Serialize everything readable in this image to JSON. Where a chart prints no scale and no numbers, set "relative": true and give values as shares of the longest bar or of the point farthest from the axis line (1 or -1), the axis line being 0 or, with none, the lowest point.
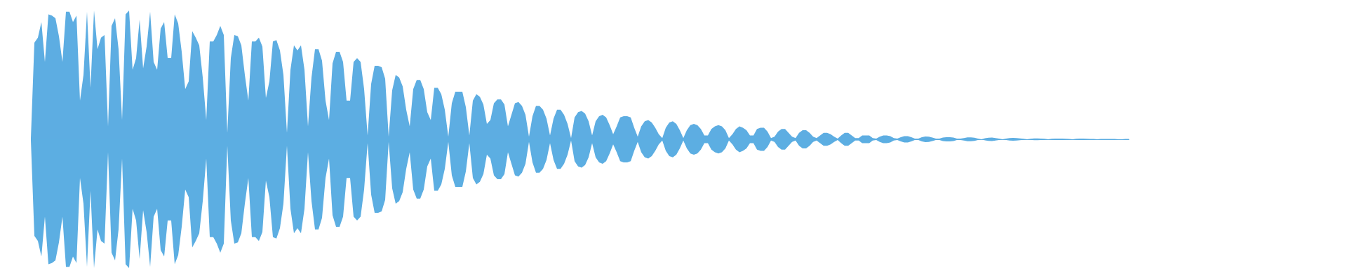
{
  "chart_data": {
    "type": "area",
    "relative": true,
    "categories": [
      null,
      null,
      null,
      null,
      null,
      null,
      null,
      null,
      null,
      null,
      null,
      null,
      null,
      null,
      null,
      null,
      null,
      null,
      null,
      null,
      null,
      null,
      null,
      null,
      null,
      null,
      null,
      null,
      null,
      null,
      null,
      null,
      null,
      null,
      null,
      null,
      null,
      null,
      null,
      null,
      null,
      null,
      null,
      null,
      null,
      null,
      null,
      null,
      null,
      null,
      null,
      null,
      null,
      null,
      null,
      null,
      null,
      null,
      null,
      null,
      null,
      null,
      null,
      null,
      null,
      null,
      null,
      null,
      null,
      null,
      null,
      null,
      null,
      null,
      null,
      null,
      null,
      null,
      null,
      null,
      null,
      null,
      null,
      null,
      null,
      null,
      null,
      null,
      null,
      null,
      null,
      null,
      null,
      null,
      null,
      null,
      null,
      null,
      null,
      null,
      null,
      null,
      null,
      null,
      null,
      null,
      null,
      null,
      null,
      null,
      null,
      null,
      null,
      null,
      null,
      null,
      null,
      null,
      null,
      null,
      null,
      null,
      null,
      null,
      null,
      null,
      null,
      null,
      null,
      null,
      null,
      null,
      null,
      null,
      null,
      null,
      null,
      null,
      null,
      null,
      null,
      null,
      null,
      null,
      null,
      null,
      null,
      null,
      null,
      null,
      null,
      null,
      null,
      null,
      null,
      null,
      null,
      null,
      null,
      null,
      null,
      null,
      null,
      null,
      null,
      null,
      null,
      null,
      null,
      null,
      null,
      null,
      null,
      null,
      null,
      null,
      null,
      null,
      null,
      null,
      null,
      null,
      null,
      null,
      null,
      null,
      null,
      null,
      null,
      null,
      null,
      null,
      null,
      null,
      null,
      null,
      null,
      null,
      null,
      null,
      null,
      null,
      null,
      null,
      null,
      null,
      null,
      null,
      null,
      null,
      null,
      null,
      null,
      null,
      null,
      null,
      null,
      null,
      null,
      null,
      null,
      null,
      null,
      null,
      null,
      null,
      null,
      null,
      null,
      null,
      null,
      null,
      null,
      null,
      null,
      null,
      null,
      null,
      null,
      null,
      null,
      null,
      null,
      null,
      null,
      null,
      null,
      null,
      null,
      null,
      null,
      null,
      null,
      null,
      null,
      null,
      null,
      null,
      null,
      null,
      null,
      null,
      null,
      null,
      null,
      null,
      null,
      null,
      null,
      null,
      null,
      null,
      null,
      null,
      null,
      null,
      null,
      null,
      null,
      null,
      null,
      null,
      null,
      null,
      null,
      null,
      null,
      null,
      null,
      null,
      null,
      null,
      null,
      null,
      null,
      null,
      null,
      null,
      null,
      null,
      null,
      null,
      null,
      null,
      null,
      null,
      null,
      null,
      null,
      null,
      null,
      null,
      null,
      null
    ],
    "series": [
      {
        "color": "#5dade2",
        "values": [
          0.01,
          0.75,
          0.79,
          0.91,
          0.6,
          0.97,
          0.96,
          0.94,
          0.8,
          0.6,
          0.99,
          0.99,
          0.91,
          0.96,
          0.3,
          0.5,
          0.99,
          0.4,
          1,
          0.7,
          0.79,
          0.81,
          0.1,
          0.88,
          0.94,
          0.7,
          0.15,
          0.97,
          1,
          0.54,
          0.63,
          0.93,
          0.55,
          0.72,
          0.99,
          0.6,
          0.54,
          0.86,
          0.91,
          0.63,
          0.63,
          0.97,
          0.9,
          0.68,
          0.39,
          0.45,
          0.84,
          0.79,
          0.73,
          0.48,
          0.15,
          0.76,
          0.76,
          0.81,
          0.88,
          0.81,
          0.05,
          0.63,
          0.81,
          0.8,
          0.73,
          0.5,
          0.3,
          0.76,
          0.76,
          0.79,
          0.72,
          0.32,
          0.45,
          0.76,
          0.77,
          0.69,
          0.5,
          0.05,
          0.54,
          0.73,
          0.69,
          0.73,
          0.54,
          0.1,
          0.48,
          0.7,
          0.7,
          0.61,
          0.3,
          0.15,
          0.59,
          0.68,
          0.68,
          0.6,
          0.3,
          0.3,
          0.6,
          0.63,
          0.6,
          0.39,
          0.03,
          0.43,
          0.57,
          0.57,
          0.56,
          0.47,
          0.02,
          0.38,
          0.5,
          0.48,
          0.41,
          0.23,
          0.1,
          0.39,
          0.46,
          0.46,
          0.39,
          0.21,
          0.15,
          0.4,
          0.4,
          0.35,
          0.23,
          0.02,
          0.28,
          0.37,
          0.37,
          0.37,
          0.25,
          0.03,
          0.3,
          0.35,
          0.33,
          0.27,
          0.12,
          0.15,
          0.28,
          0.31,
          0.31,
          0.27,
          0.1,
          0.19,
          0.28,
          0.29,
          0.26,
          0.19,
          0.02,
          0.18,
          0.26,
          0.26,
          0.23,
          0.16,
          0.03,
          0.16,
          0.23,
          0.23,
          0.19,
          0.12,
          0.01,
          0.17,
          0.21,
          0.22,
          0.2,
          0.14,
          0.03,
          0.14,
          0.18,
          0.19,
          0.17,
          0.11,
          0.04,
          0.1,
          0.17,
          0.18,
          0.18,
          0.17,
          0.09,
          0.02,
          0.1,
          0.14,
          0.15,
          0.13,
          0.09,
          0.04,
          0.01,
          0.09,
          0.13,
          0.14,
          0.12,
          0.07,
          0.01,
          0.07,
          0.11,
          0.12,
          0.11,
          0.08,
          0.03,
          0.03,
          0.08,
          0.1,
          0.11,
          0.1,
          0.07,
          0.01,
          0.04,
          0.08,
          0.1,
          0.09,
          0.07,
          0.03,
          0.03,
          0.08,
          0.09,
          0.09,
          0.06,
          0.01,
          0.02,
          0.06,
          0.08,
          0.08,
          0.05,
          0.02,
          0.01,
          0.05,
          0.07,
          0.07,
          0.05,
          0.02,
          0.01,
          0.03,
          0.05,
          0.05,
          0.04,
          0.02,
          0.005,
          0.03,
          0.05,
          0.05,
          0.03,
          0.01,
          0.01,
          0.03,
          0.03,
          0.03,
          0.01,
          0.005,
          0.02,
          0.03,
          0.03,
          0.024,
          0.01,
          0.005,
          0.016,
          0.025,
          0.025,
          0.016,
          0.005,
          0.005,
          0.016,
          0.022,
          0.02,
          0.013,
          0.005,
          0.005,
          0.013,
          0.016,
          0.016,
          0.013,
          0.005,
          0.005,
          0.01,
          0.015,
          0.015,
          0.012,
          0.006,
          0,
          0.008,
          0.012,
          0.013,
          0.01,
          0.006,
          0,
          0.006,
          0.01,
          0.011,
          0.01,
          0.007,
          0.004,
          0,
          0.004,
          0.007,
          0.007,
          0.006,
          0.004,
          0,
          0.004,
          0.005,
          0.006,
          0.005,
          0.004,
          0.003,
          0,
          0.004,
          0.005,
          0.005,
          0.004,
          0.003,
          0.003,
          0,
          0.003,
          0.003,
          0.003,
          0.003,
          0.003,
          0,
          0,
          0.003,
          0.003
        ]
      },
      {
        "color": "#5caee2",
        "values": [
          -0.01,
          -0.75,
          -0.79,
          -0.91,
          -0.6,
          -0.97,
          -0.96,
          -0.94,
          -0.8,
          -0.6,
          -0.99,
          -0.99,
          -0.91,
          -0.96,
          -0.3,
          -0.5,
          -0.99,
          -0.4,
          -1,
          -0.7,
          -0.79,
          -0.81,
          -0.1,
          -0.88,
          -0.94,
          -0.7,
          -0.15,
          -0.97,
          -1,
          -0.54,
          -0.63,
          -0.93,
          -0.55,
          -0.72,
          -0.99,
          -0.6,
          -0.54,
          -0.86,
          -0.91,
          -0.63,
          -0.63,
          -0.97,
          -0.9,
          -0.68,
          -0.39,
          -0.45,
          -0.84,
          -0.79,
          -0.73,
          -0.48,
          -0.15,
          -0.76,
          -0.76,
          -0.81,
          -0.88,
          -0.81,
          -0.05,
          -0.63,
          -0.81,
          -0.8,
          -0.73,
          -0.5,
          -0.3,
          -0.76,
          -0.76,
          -0.79,
          -0.72,
          -0.32,
          -0.45,
          -0.76,
          -0.77,
          -0.69,
          -0.5,
          -0.05,
          -0.54,
          -0.73,
          -0.69,
          -0.73,
          -0.54,
          -0.1,
          -0.48,
          -0.7,
          -0.7,
          -0.61,
          -0.3,
          -0.15,
          -0.59,
          -0.68,
          -0.68,
          -0.6,
          -0.3,
          -0.3,
          -0.6,
          -0.63,
          -0.6,
          -0.39,
          -0.03,
          -0.43,
          -0.57,
          -0.57,
          -0.56,
          -0.47,
          -0.02,
          -0.38,
          -0.5,
          -0.48,
          -0.41,
          -0.23,
          -0.1,
          -0.39,
          -0.46,
          -0.46,
          -0.39,
          -0.21,
          -0.15,
          -0.4,
          -0.4,
          -0.35,
          -0.23,
          -0.02,
          -0.28,
          -0.37,
          -0.37,
          -0.37,
          -0.25,
          -0.03,
          -0.3,
          -0.35,
          -0.33,
          -0.27,
          -0.12,
          -0.15,
          -0.28,
          -0.31,
          -0.31,
          -0.27,
          -0.1,
          -0.19,
          -0.28,
          -0.29,
          -0.26,
          -0.19,
          -0.02,
          -0.18,
          -0.26,
          -0.26,
          -0.23,
          -0.16,
          -0.03,
          -0.16,
          -0.23,
          -0.23,
          -0.19,
          -0.12,
          -0.01,
          -0.17,
          -0.21,
          -0.22,
          -0.2,
          -0.14,
          -0.03,
          -0.14,
          -0.18,
          -0.19,
          -0.17,
          -0.11,
          -0.04,
          -0.1,
          -0.17,
          -0.18,
          -0.18,
          -0.17,
          -0.09,
          -0.02,
          -0.1,
          -0.14,
          -0.15,
          -0.13,
          -0.09,
          -0.04,
          -0.01,
          -0.09,
          -0.13,
          -0.14,
          -0.12,
          -0.07,
          -0.01,
          -0.07,
          -0.11,
          -0.12,
          -0.11,
          -0.08,
          -0.03,
          -0.03,
          -0.08,
          -0.1,
          -0.11,
          -0.1,
          -0.07,
          -0.01,
          -0.04,
          -0.08,
          -0.1,
          -0.09,
          -0.07,
          -0.03,
          -0.03,
          -0.08,
          -0.09,
          -0.09,
          -0.06,
          -0.01,
          -0.02,
          -0.06,
          -0.08,
          -0.08,
          -0.05,
          -0.02,
          -0.01,
          -0.05,
          -0.07,
          -0.07,
          -0.05,
          -0.02,
          -0.01,
          -0.03,
          -0.05,
          -0.05,
          -0.04,
          -0.02,
          -0.005,
          -0.03,
          -0.05,
          -0.05,
          -0.03,
          -0.01,
          -0.01,
          -0.03,
          -0.03,
          -0.03,
          -0.01,
          -0.005,
          -0.02,
          -0.03,
          -0.03,
          -0.024,
          -0.01,
          -0.005,
          -0.016,
          -0.025,
          -0.025,
          -0.016,
          -0.005,
          -0.005,
          -0.016,
          -0.022,
          -0.02,
          -0.013,
          -0.005,
          -0.005,
          -0.013,
          -0.016,
          -0.016,
          -0.013,
          -0.005,
          -0.005,
          -0.01,
          -0.015,
          -0.015,
          -0.012,
          -0.006,
          0,
          -0.008,
          -0.012,
          -0.013,
          -0.01,
          -0.006,
          0,
          -0.006,
          -0.01,
          -0.011,
          -0.01,
          -0.007,
          -0.004,
          0,
          -0.004,
          -0.007,
          -0.007,
          -0.006,
          -0.004,
          0,
          -0.004,
          -0.005,
          -0.006,
          -0.005,
          -0.004,
          -0.003,
          0,
          -0.004,
          -0.005,
          -0.005,
          -0.004,
          -0.003,
          -0.003,
          0,
          -0.003,
          -0.003,
          -0.003,
          -0.003,
          -0.003,
          0,
          0,
          -0.003,
          -0.003
        ]
      }
    ]
  }
}
